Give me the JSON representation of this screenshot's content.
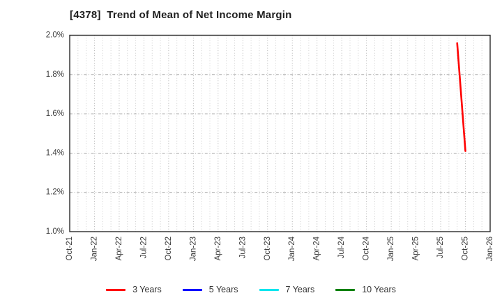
{
  "figure": {
    "background": "#ffffff"
  },
  "title": "[4378]  Trend of Mean of Net Income Margin",
  "chart_data": {
    "type": "line",
    "title": "[4378]  Trend of Mean of Net Income Margin",
    "x_axis": {
      "unit": "month",
      "start": "Oct-21",
      "end": "Jan-26",
      "tick_interval_months": 3,
      "tick_labels": [
        "Oct-21",
        "Jan-22",
        "Apr-22",
        "Jul-22",
        "Oct-22",
        "Jan-23",
        "Apr-23",
        "Jul-23",
        "Oct-23",
        "Jan-24",
        "Apr-24",
        "Jul-24",
        "Oct-24",
        "Jan-25",
        "Apr-25",
        "Jul-25",
        "Oct-25",
        "Jan-26"
      ],
      "minor_grid_interval_months": 1
    },
    "y_axis": {
      "min": 1.0,
      "max": 2.0,
      "tick_values": [
        1.0,
        1.2,
        1.4,
        1.6,
        1.8,
        2.0
      ],
      "tick_labels": [
        "1.0%",
        "1.2%",
        "1.4%",
        "1.6%",
        "1.8%",
        "2.0%"
      ]
    },
    "grid": {
      "vertical": "dotted, monthly",
      "horizontal": "dash-dot at labeled ticks"
    },
    "legend_position": "bottom",
    "series": [
      {
        "name": "3 Years",
        "color": "#ff0000",
        "points": [
          {
            "month": "Sep-25",
            "value": 1.96
          },
          {
            "month": "Oct-25",
            "value": 1.41
          }
        ]
      },
      {
        "name": "5 Years",
        "color": "#0000ff",
        "points": []
      },
      {
        "name": "7 Years",
        "color": "#00e5ee",
        "points": []
      },
      {
        "name": "10 Years",
        "color": "#008000",
        "points": []
      }
    ]
  },
  "colors": {
    "plot_border": "#2b2b2b",
    "grid_minor": "#c9c9c9",
    "grid_quarter": "#ababab",
    "grid_horizontal": "#9a9a9a",
    "tick_label": "#3d3d3d",
    "title_text": "#1f1f1f",
    "legend_text": "#333333"
  }
}
